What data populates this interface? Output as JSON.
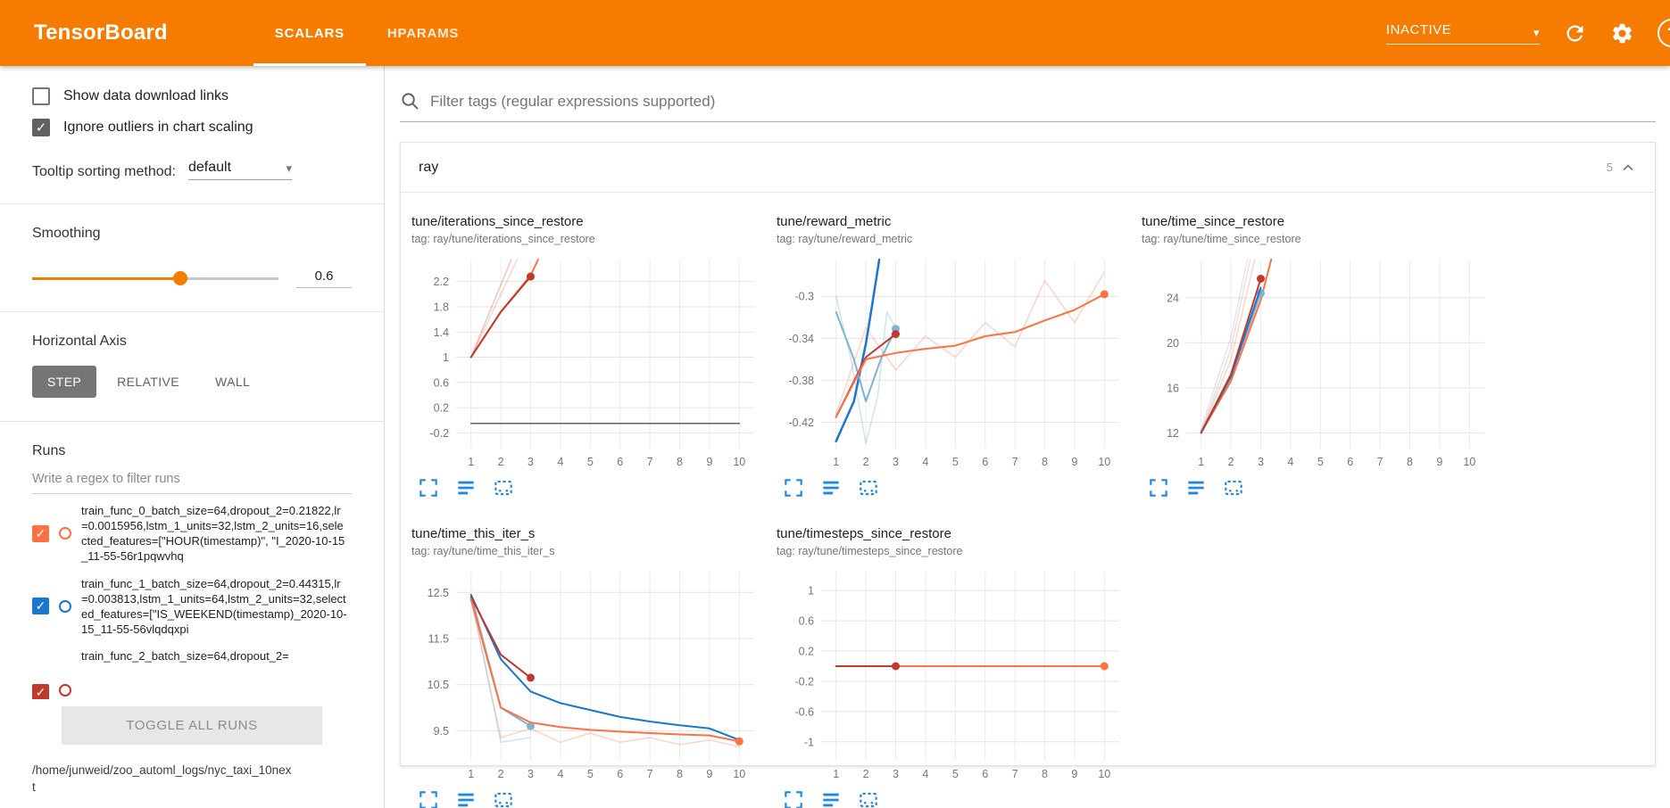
{
  "colors": {
    "header_bg": "#f57c00",
    "accent_orange": "#f57c00",
    "run0_orange": "#ff7043",
    "run1_blue": "#1976d2",
    "run2_red": "#c0392b",
    "run3_lightblue": "#7fb3d5",
    "checked_checkbox_gray": "#616161",
    "chart_action_blue": "#1e88e5"
  },
  "header": {
    "title": "TensorBoard",
    "tabs": [
      {
        "label": "SCALARS"
      },
      {
        "label": "HPARAMS"
      }
    ],
    "status": "INACTIVE"
  },
  "sidebar": {
    "show_download_label": "Show data download links",
    "ignore_outliers_label": "Ignore outliers in chart scaling",
    "tooltip_sorting_label": "Tooltip sorting method:",
    "tooltip_sorting_value": "default",
    "smoothing_label": "Smoothing",
    "smoothing_value": "0.6",
    "horizontal_axis_label": "Horizontal Axis",
    "axis_options": [
      {
        "label": "STEP"
      },
      {
        "label": "RELATIVE"
      },
      {
        "label": "WALL"
      }
    ],
    "runs_label": "Runs",
    "runs_filter_placeholder": "Write a regex to filter runs",
    "runs": [
      {
        "label": "train_func_0_batch_size=64,dropout_2=0.21822,lr=0.0015956,lstm_1_units=32,lstm_2_units=16,selected_features=[\"HOUR(timestamp)\", \"I_2020-10-15_11-55-56r1pqwvhq",
        "color": "#ff7043",
        "checked": true
      },
      {
        "label": "train_func_1_batch_size=64,dropout_2=0.44315,lr=0.003813,lstm_1_units=64,lstm_2_units=32,selected_features=[\"IS_WEEKEND(timestamp)_2020-10-15_11-55-56vlqdqxpi",
        "color": "#1976d2",
        "checked": true
      },
      {
        "label": "train_func_2_batch_size=64,dropout_2=",
        "color": "#c0392b",
        "checked": true
      }
    ],
    "toggle_all_label": "TOGGLE ALL RUNS",
    "logdir": "/home/junweid/zoo_automl_logs/nyc_taxi_10next"
  },
  "main": {
    "filter_placeholder": "Filter tags (regular expressions supported)",
    "section_title": "ray",
    "section_count": "5"
  },
  "chart_data": [
    {
      "type": "line",
      "title": "tune/iterations_since_restore",
      "subtitle": "tag: ray/tune/iterations_since_restore",
      "xlabel": "",
      "ylabel": "",
      "x_range": [
        0.5,
        10.5
      ],
      "y_range": [
        -0.45,
        2.55
      ],
      "x_ticks": [
        1,
        2,
        3,
        4,
        5,
        6,
        7,
        8,
        9,
        10
      ],
      "y_ticks": [
        -0.2,
        0.2,
        0.6,
        1,
        1.4,
        1.8,
        2.2
      ],
      "grid": true,
      "legend": "none",
      "series": [
        {
          "name": "baseline-zero",
          "color": "#616161",
          "width": 1.5,
          "points": [
            [
              1,
              -0.05
            ],
            [
              10,
              -0.05
            ]
          ]
        },
        {
          "name": "train_func_0-raw",
          "color": "#ff7043",
          "opacity": 0.3,
          "width": 1.5,
          "points": [
            [
              1,
              1
            ],
            [
              2,
              2
            ],
            [
              2.55,
              2.55
            ]
          ]
        },
        {
          "name": "train_func_2-raw",
          "color": "#c0392b",
          "opacity": 0.3,
          "width": 1.5,
          "points": [
            [
              1,
              1
            ],
            [
              2.35,
              2.55
            ]
          ]
        },
        {
          "name": "train_func_0-smoothed",
          "color": "#ff7043",
          "width": 2,
          "points": [
            [
              1,
              1
            ],
            [
              2,
              1.72
            ],
            [
              3,
              2.3
            ],
            [
              3.25,
              2.55
            ]
          ]
        },
        {
          "name": "train_func_2-smoothed",
          "color": "#c0392b",
          "width": 2,
          "points": [
            [
              1,
              1
            ],
            [
              2,
              1.72
            ],
            [
              3,
              2.28
            ]
          ],
          "marker": [
            3,
            2.28
          ]
        }
      ]
    },
    {
      "type": "line",
      "title": "tune/reward_metric",
      "subtitle": "tag: ray/tune/reward_metric",
      "xlabel": "",
      "ylabel": "",
      "x_range": [
        0.5,
        10.5
      ],
      "y_range": [
        -0.445,
        -0.265
      ],
      "x_ticks": [
        1,
        2,
        3,
        4,
        5,
        6,
        7,
        8,
        9,
        10
      ],
      "y_ticks": [
        -0.42,
        -0.38,
        -0.34,
        -0.3
      ],
      "grid": true,
      "legend": "none",
      "series": [
        {
          "name": "train_func_0-raw",
          "color": "#ff7043",
          "opacity": 0.3,
          "width": 1.5,
          "points": [
            [
              1,
              -0.412
            ],
            [
              2,
              -0.33
            ],
            [
              3,
              -0.37
            ],
            [
              4,
              -0.338
            ],
            [
              5,
              -0.358
            ],
            [
              6,
              -0.325
            ],
            [
              7,
              -0.348
            ],
            [
              8,
              -0.285
            ],
            [
              9,
              -0.325
            ],
            [
              10,
              -0.277
            ]
          ]
        },
        {
          "name": "train_func_3-raw",
          "color": "#7fb3d5",
          "opacity": 0.35,
          "width": 1.5,
          "points": [
            [
              1,
              -0.3
            ],
            [
              1.5,
              -0.36
            ],
            [
              2,
              -0.44
            ],
            [
              2.4,
              -0.395
            ],
            [
              2.7,
              -0.315
            ],
            [
              3,
              -0.33
            ]
          ]
        },
        {
          "name": "train_func_1-smoothed",
          "color": "#1976d2",
          "width": 2.5,
          "points": [
            [
              1,
              -0.438
            ],
            [
              1.6,
              -0.4
            ],
            [
              2,
              -0.345
            ],
            [
              2.2,
              -0.31
            ],
            [
              2.45,
              -0.265
            ]
          ]
        },
        {
          "name": "train_func_3-smoothed",
          "color": "#7fb3d5",
          "width": 2,
          "points": [
            [
              1,
              -0.315
            ],
            [
              1.6,
              -0.36
            ],
            [
              2,
              -0.4
            ],
            [
              2.5,
              -0.36
            ],
            [
              3,
              -0.331
            ]
          ],
          "marker": [
            3,
            -0.331
          ]
        },
        {
          "name": "train_func_2-smoothed",
          "color": "#c0392b",
          "width": 2,
          "points": [
            [
              1,
              -0.415
            ],
            [
              2,
              -0.358
            ],
            [
              3,
              -0.336
            ]
          ],
          "marker": [
            3,
            -0.336
          ]
        },
        {
          "name": "train_func_0-smoothed",
          "color": "#ff7043",
          "width": 2,
          "points": [
            [
              1,
              -0.415
            ],
            [
              2,
              -0.36
            ],
            [
              3,
              -0.354
            ],
            [
              4,
              -0.35
            ],
            [
              5,
              -0.347
            ],
            [
              6,
              -0.338
            ],
            [
              7,
              -0.334
            ],
            [
              8,
              -0.323
            ],
            [
              9,
              -0.313
            ],
            [
              10,
              -0.298
            ]
          ],
          "marker": [
            10,
            -0.298
          ]
        }
      ]
    },
    {
      "type": "line",
      "title": "tune/time_since_restore",
      "subtitle": "tag: ray/tune/time_since_restore",
      "xlabel": "",
      "ylabel": "",
      "x_range": [
        0.5,
        10.5
      ],
      "y_range": [
        10.6,
        27.4
      ],
      "x_ticks": [
        1,
        2,
        3,
        4,
        5,
        6,
        7,
        8,
        9,
        10
      ],
      "y_ticks": [
        12,
        16,
        20,
        24
      ],
      "grid": true,
      "legend": "none",
      "series": [
        {
          "name": "raw-gray",
          "color": "#9e9e9e",
          "opacity": 0.3,
          "width": 1.5,
          "points": [
            [
              1,
              12
            ],
            [
              2,
              19.5
            ],
            [
              2.65,
              27.4
            ]
          ]
        },
        {
          "name": "raw-lavender",
          "color": "#b39ddb",
          "opacity": 0.3,
          "width": 1.5,
          "points": [
            [
              1,
              12.3
            ],
            [
              2,
              20.5
            ],
            [
              2.55,
              27.4
            ]
          ]
        },
        {
          "name": "train_func_0-raw",
          "color": "#ff7043",
          "opacity": 0.3,
          "width": 1.5,
          "points": [
            [
              1,
              12
            ],
            [
              2,
              18.5
            ],
            [
              2.8,
              27.4
            ]
          ]
        },
        {
          "name": "train_func_0-smoothed",
          "color": "#ff7043",
          "width": 2,
          "points": [
            [
              1,
              12
            ],
            [
              2,
              16.6
            ],
            [
              3,
              23.8
            ],
            [
              3.35,
              27.4
            ]
          ]
        },
        {
          "name": "train_func_3-smoothed",
          "color": "#7fb3d5",
          "width": 2,
          "points": [
            [
              1,
              12.1
            ],
            [
              2,
              17
            ],
            [
              3,
              24.4
            ]
          ],
          "marker": [
            3,
            24.4
          ]
        },
        {
          "name": "train_func_1-smoothed",
          "color": "#1976d2",
          "width": 2,
          "points": [
            [
              1,
              12
            ],
            [
              2,
              17
            ],
            [
              3,
              24.9
            ]
          ]
        },
        {
          "name": "train_func_2-smoothed",
          "color": "#c0392b",
          "width": 2,
          "points": [
            [
              1,
              12
            ],
            [
              2,
              17.2
            ],
            [
              3,
              25.7
            ]
          ],
          "marker": [
            3,
            25.7
          ]
        }
      ]
    },
    {
      "type": "line",
      "title": "tune/time_this_iter_s",
      "subtitle": "tag: ray/tune/time_this_iter_s",
      "xlabel": "",
      "ylabel": "",
      "x_range": [
        0.5,
        10.5
      ],
      "y_range": [
        8.85,
        12.95
      ],
      "x_ticks": [
        1,
        2,
        3,
        4,
        5,
        6,
        7,
        8,
        9,
        10
      ],
      "y_ticks": [
        9.5,
        10.5,
        11.5,
        12.5
      ],
      "grid": true,
      "legend": "none",
      "series": [
        {
          "name": "train_func_0-raw",
          "color": "#ff7043",
          "opacity": 0.3,
          "width": 1.5,
          "points": [
            [
              1,
              12.35
            ],
            [
              2,
              9.35
            ],
            [
              3,
              9.55
            ],
            [
              4,
              9.25
            ],
            [
              5,
              9.45
            ],
            [
              6,
              9.25
            ],
            [
              7,
              9.35
            ],
            [
              8,
              9.2
            ],
            [
              9,
              9.3
            ],
            [
              10,
              9.15
            ]
          ]
        },
        {
          "name": "train_func_3-raw",
          "color": "#7fb3d5",
          "opacity": 0.35,
          "width": 1.5,
          "points": [
            [
              1,
              12.45
            ],
            [
              2,
              9.25
            ],
            [
              3,
              9.35
            ]
          ]
        },
        {
          "name": "train_func_3-smoothed",
          "color": "#7fb3d5",
          "width": 2,
          "points": [
            [
              1,
              12.45
            ],
            [
              2,
              10.0
            ],
            [
              3,
              9.6
            ]
          ],
          "marker": [
            3,
            9.6
          ]
        },
        {
          "name": "train_func_1-smoothed",
          "color": "#1976d2",
          "width": 2,
          "points": [
            [
              1,
              12.45
            ],
            [
              2,
              11.05
            ],
            [
              3,
              10.35
            ],
            [
              4,
              10.1
            ],
            [
              5,
              9.95
            ],
            [
              6,
              9.8
            ],
            [
              7,
              9.7
            ],
            [
              8,
              9.62
            ],
            [
              9,
              9.55
            ],
            [
              10,
              9.3
            ]
          ]
        },
        {
          "name": "train_func_2-smoothed",
          "color": "#c0392b",
          "width": 2,
          "points": [
            [
              1,
              12.4
            ],
            [
              2,
              11.15
            ],
            [
              3,
              10.65
            ]
          ],
          "marker": [
            3,
            10.65
          ]
        },
        {
          "name": "train_func_0-smoothed",
          "color": "#ff7043",
          "width": 2,
          "points": [
            [
              1,
              12.35
            ],
            [
              2,
              10.0
            ],
            [
              3,
              9.68
            ],
            [
              4,
              9.58
            ],
            [
              5,
              9.52
            ],
            [
              6,
              9.48
            ],
            [
              7,
              9.45
            ],
            [
              8,
              9.42
            ],
            [
              9,
              9.4
            ],
            [
              10,
              9.27
            ]
          ],
          "marker": [
            10,
            9.27
          ]
        }
      ]
    },
    {
      "type": "line",
      "title": "tune/timesteps_since_restore",
      "subtitle": "tag: ray/tune/timesteps_since_restore",
      "xlabel": "",
      "ylabel": "",
      "x_range": [
        0.5,
        10.5
      ],
      "y_range": [
        -1.25,
        1.25
      ],
      "x_ticks": [
        1,
        2,
        3,
        4,
        5,
        6,
        7,
        8,
        9,
        10
      ],
      "y_ticks": [
        -1,
        -0.6,
        -0.2,
        0.2,
        0.6,
        1
      ],
      "grid": true,
      "legend": "none",
      "series": [
        {
          "name": "baseline-zero",
          "color": "#616161",
          "width": 1.5,
          "points": [
            [
              1,
              0
            ],
            [
              10,
              0
            ]
          ]
        },
        {
          "name": "train_func_0-smoothed",
          "color": "#ff7043",
          "width": 2,
          "points": [
            [
              1,
              0
            ],
            [
              10,
              0
            ]
          ],
          "marker": [
            10,
            0
          ]
        },
        {
          "name": "train_func_2-smoothed",
          "color": "#c0392b",
          "width": 2,
          "points": [
            [
              1,
              0
            ],
            [
              3,
              0
            ]
          ],
          "marker": [
            3,
            0
          ]
        }
      ]
    }
  ]
}
